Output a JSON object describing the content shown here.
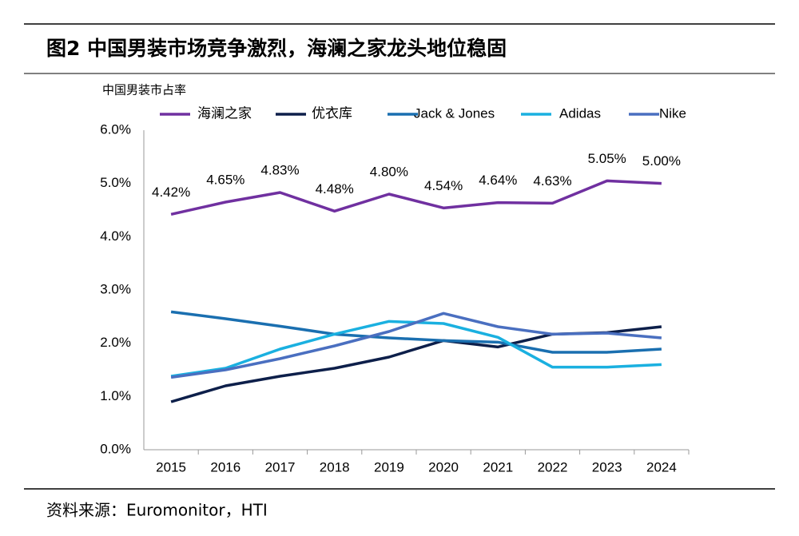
{
  "chart_data": {
    "type": "line",
    "title": "图2  中国男装市场竞争激烈，海澜之家龙头地位稳固",
    "ylabel": "中国男装市占率",
    "source": "资料来源：Euromonitor，HTI",
    "categories": [
      "2015",
      "2016",
      "2017",
      "2018",
      "2019",
      "2020",
      "2021",
      "2022",
      "2023",
      "2024"
    ],
    "ylim": [
      0,
      6
    ],
    "yticks": [
      {
        "value": 0,
        "label": "0.0%"
      },
      {
        "value": 1,
        "label": "1.0%"
      },
      {
        "value": 2,
        "label": "2.0%"
      },
      {
        "value": 3,
        "label": "3.0%"
      },
      {
        "value": 4,
        "label": "4.0%"
      },
      {
        "value": 5,
        "label": "5.0%"
      },
      {
        "value": 6,
        "label": "6.0%"
      }
    ],
    "series": [
      {
        "name": "海澜之家",
        "color": "#7030a0",
        "values": [
          4.42,
          4.65,
          4.83,
          4.48,
          4.8,
          4.54,
          4.64,
          4.63,
          5.05,
          5.0
        ],
        "value_labels": [
          "4.42%",
          "4.65%",
          "4.83%",
          "4.48%",
          "4.80%",
          "4.54%",
          "4.64%",
          "4.63%",
          "5.05%",
          "5.00%"
        ]
      },
      {
        "name": "优衣库",
        "color": "#0d1f4a",
        "values": [
          0.9,
          1.2,
          1.38,
          1.53,
          1.74,
          2.05,
          1.93,
          2.17,
          2.2,
          2.31
        ]
      },
      {
        "name": "Jack & Jones",
        "color": "#1a6fb0",
        "values": [
          2.59,
          2.46,
          2.32,
          2.17,
          2.1,
          2.05,
          2.02,
          1.83,
          1.83,
          1.89
        ]
      },
      {
        "name": "Adidas",
        "color": "#1ab0e0",
        "values": [
          1.38,
          1.53,
          1.89,
          2.17,
          2.41,
          2.37,
          2.11,
          1.55,
          1.55,
          1.6
        ]
      },
      {
        "name": "Nike",
        "color": "#4a6fc0",
        "values": [
          1.36,
          1.5,
          1.71,
          1.95,
          2.22,
          2.56,
          2.31,
          2.17,
          2.19,
          2.1
        ]
      }
    ]
  }
}
